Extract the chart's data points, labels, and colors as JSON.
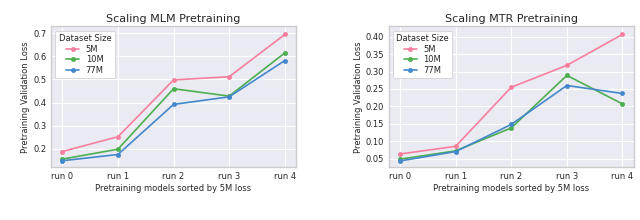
{
  "mlm": {
    "title": "Scaling MLM Pretraining",
    "xlabel": "Pretraining models sorted by 5M loss",
    "ylabel": "Pretraining Validation Loss",
    "x_labels": [
      "run 0",
      "run 1",
      "run 2",
      "run 3",
      "run 4"
    ],
    "series": {
      "5M": [
        0.188,
        0.252,
        0.498,
        0.512,
        0.695
      ],
      "10M": [
        0.155,
        0.198,
        0.46,
        0.428,
        0.615
      ],
      "77M": [
        0.148,
        0.175,
        0.392,
        0.425,
        0.582
      ]
    },
    "colors": {
      "5M": "#f77f9e",
      "10M": "#4caf50",
      "77M": "#4488cc"
    },
    "ylim": [
      0.12,
      0.73
    ],
    "yticks": [
      0.2,
      0.3,
      0.4,
      0.5,
      0.6,
      0.7
    ]
  },
  "mtr": {
    "title": "Scaling MTR Pretraining",
    "xlabel": "Pretraining models sorted by 5M loss",
    "ylabel": "Pretraining Validation Loss",
    "x_labels": [
      "run 0",
      "run 1",
      "run 2",
      "run 3",
      "run 4"
    ],
    "series": {
      "5M": [
        0.063,
        0.085,
        0.255,
        0.318,
        0.407
      ],
      "10M": [
        0.048,
        0.072,
        0.138,
        0.289,
        0.207
      ],
      "77M": [
        0.043,
        0.07,
        0.148,
        0.26,
        0.237
      ]
    },
    "colors": {
      "5M": "#f77f9e",
      "10M": "#4caf50",
      "77M": "#4488cc"
    },
    "ylim": [
      0.025,
      0.43
    ],
    "yticks": [
      0.05,
      0.1,
      0.15,
      0.2,
      0.25,
      0.3,
      0.35,
      0.4
    ]
  },
  "legend_title": "Dataset Size",
  "marker": "o",
  "marker_size": 3,
  "linewidth": 1.2,
  "title_fontsize": 8,
  "label_fontsize": 6,
  "tick_fontsize": 6,
  "legend_fontsize": 6,
  "bg_color": "#eaeaf2"
}
